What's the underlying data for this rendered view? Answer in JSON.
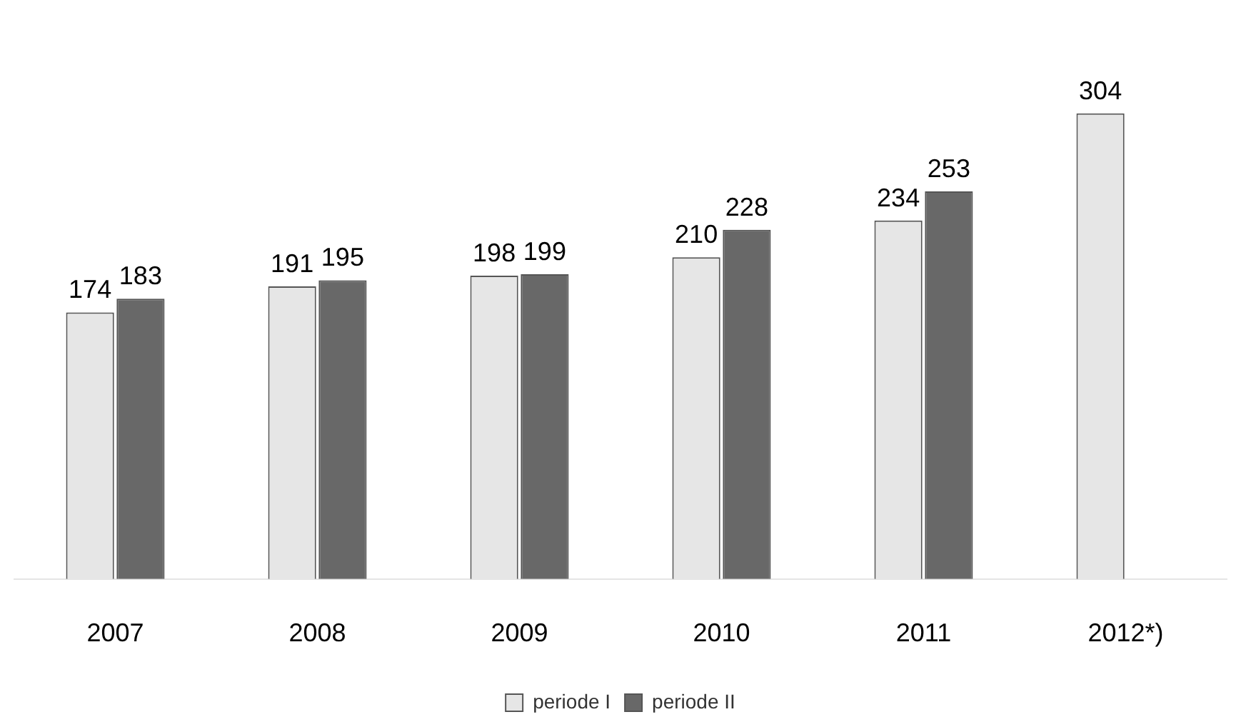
{
  "chart_data": {
    "type": "bar",
    "categories": [
      "2007",
      "2008",
      "2009",
      "2010",
      "2011",
      "2012*)"
    ],
    "series": [
      {
        "name": "periode I",
        "color": "#e6e6e6",
        "values": [
          174,
          191,
          198,
          210,
          234,
          304
        ]
      },
      {
        "name": "periode II",
        "color": "#686868",
        "values": [
          183,
          195,
          199,
          228,
          253,
          null
        ]
      }
    ],
    "data_labels": true,
    "legend": "bottom",
    "grid": false
  }
}
